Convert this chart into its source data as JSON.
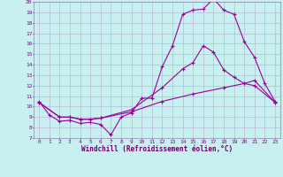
{
  "xlabel": "Windchill (Refroidissement éolien,°C)",
  "bg_color": "#c8f0f0",
  "grid_color": "#b0b0cc",
  "line_color": "#990099",
  "xlim": [
    -0.5,
    23.5
  ],
  "ylim": [
    7,
    20
  ],
  "yticks": [
    7,
    8,
    9,
    10,
    11,
    12,
    13,
    14,
    15,
    16,
    17,
    18,
    19,
    20
  ],
  "xticks": [
    0,
    1,
    2,
    3,
    4,
    5,
    6,
    7,
    8,
    9,
    10,
    11,
    12,
    13,
    14,
    15,
    16,
    17,
    18,
    19,
    20,
    21,
    22,
    23
  ],
  "line1_x": [
    0,
    1,
    2,
    3,
    4,
    5,
    6,
    7,
    8,
    9,
    10,
    11,
    12,
    13,
    14,
    15,
    16,
    17,
    18,
    19,
    20,
    21,
    22,
    23
  ],
  "line1_y": [
    10.5,
    9.2,
    8.6,
    8.7,
    8.4,
    8.5,
    8.3,
    7.3,
    9.0,
    9.4,
    10.8,
    10.8,
    13.8,
    15.8,
    18.8,
    19.2,
    19.3,
    20.3,
    19.2,
    18.8,
    16.2,
    14.7,
    12.2,
    10.5
  ],
  "line2_x": [
    0,
    2,
    3,
    4,
    5,
    6,
    9,
    12,
    14,
    15,
    16,
    17,
    18,
    19,
    20,
    21,
    23
  ],
  "line2_y": [
    10.4,
    9.0,
    9.0,
    8.8,
    8.8,
    8.9,
    9.7,
    11.8,
    13.6,
    14.2,
    15.8,
    15.2,
    13.5,
    12.8,
    12.2,
    12.0,
    10.4
  ],
  "line3_x": [
    0,
    2,
    3,
    4,
    5,
    6,
    9,
    12,
    15,
    18,
    20,
    21,
    23
  ],
  "line3_y": [
    10.4,
    9.0,
    9.0,
    8.8,
    8.8,
    8.9,
    9.5,
    10.5,
    11.2,
    11.8,
    12.2,
    12.5,
    10.4
  ]
}
